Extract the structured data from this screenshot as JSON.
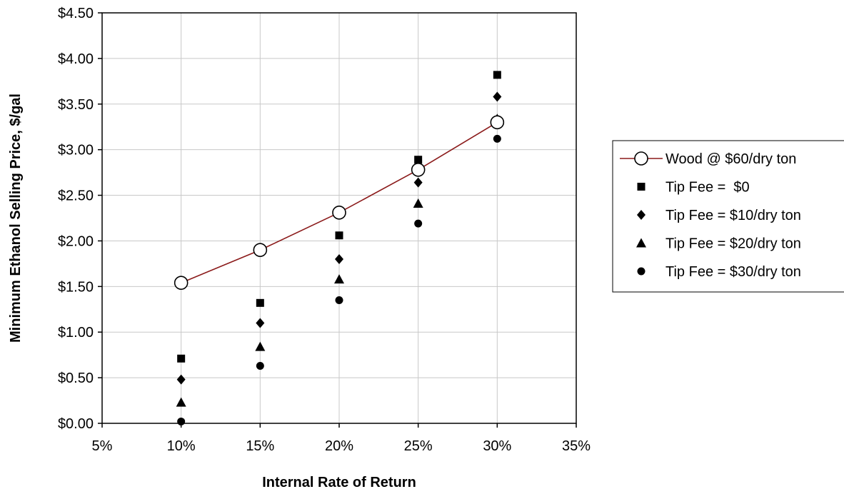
{
  "chart_data": {
    "type": "line",
    "title": "",
    "xlabel": "Internal Rate of Return",
    "ylabel": "Minimum Ethanol Selling Price, $/gal",
    "x": [
      10,
      15,
      20,
      25,
      30
    ],
    "xlim": [
      5,
      35
    ],
    "ylim": [
      0,
      4.5
    ],
    "x_ticks": [
      5,
      10,
      15,
      20,
      25,
      30,
      35
    ],
    "x_tick_labels": [
      "5%",
      "10%",
      "15%",
      "20%",
      "25%",
      "30%",
      "35%"
    ],
    "y_ticks": [
      0,
      0.5,
      1.0,
      1.5,
      2.0,
      2.5,
      3.0,
      3.5,
      4.0,
      4.5
    ],
    "y_tick_labels": [
      "$0.00",
      "$0.50",
      "$1.00",
      "$1.50",
      "$2.00",
      "$2.50",
      "$3.00",
      "$3.50",
      "$4.00",
      "$4.50"
    ],
    "grid": "horizontal and vertical",
    "legend_position": "right",
    "series": [
      {
        "name": "Wood @ $60/dry ton",
        "marker": "open-circle",
        "line": true,
        "color": "#8b1a1a",
        "values": [
          1.54,
          1.9,
          2.31,
          2.78,
          3.3
        ]
      },
      {
        "name": "Tip Fee =  $0",
        "marker": "square",
        "line": false,
        "color": "#000000",
        "values": [
          0.71,
          1.32,
          2.06,
          2.89,
          3.82
        ]
      },
      {
        "name": "Tip Fee = $10/dry ton",
        "marker": "diamond",
        "line": false,
        "color": "#000000",
        "values": [
          0.48,
          1.1,
          1.8,
          2.64,
          3.58
        ]
      },
      {
        "name": "Tip Fee = $20/dry ton",
        "marker": "triangle",
        "line": false,
        "color": "#000000",
        "values": [
          0.23,
          0.84,
          1.58,
          2.41,
          3.34
        ]
      },
      {
        "name": "Tip Fee = $30/dry ton",
        "marker": "circle",
        "line": false,
        "color": "#000000",
        "values": [
          0.02,
          0.63,
          1.35,
          2.19,
          3.12
        ]
      }
    ]
  }
}
